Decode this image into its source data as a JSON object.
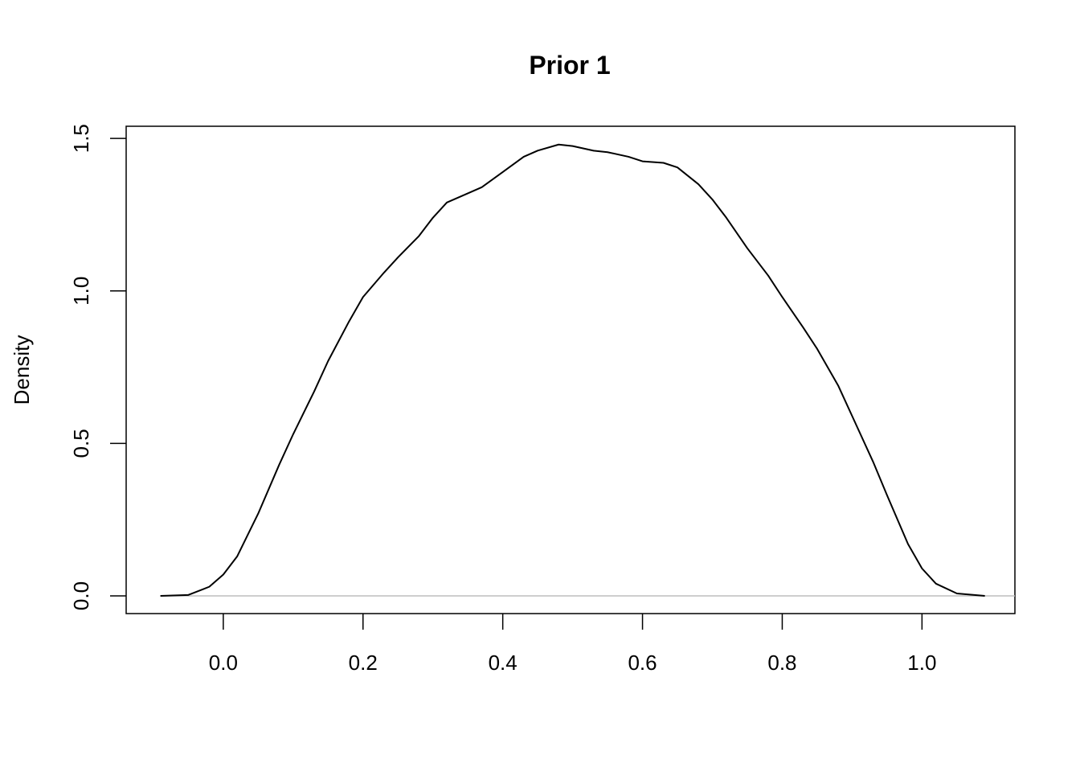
{
  "chart_data": {
    "type": "line",
    "title": "Prior 1",
    "y_label": "Density",
    "x": [
      -0.09,
      -0.05,
      -0.02,
      0.0,
      0.02,
      0.05,
      0.08,
      0.1,
      0.13,
      0.15,
      0.18,
      0.2,
      0.23,
      0.25,
      0.28,
      0.3,
      0.32,
      0.35,
      0.37,
      0.4,
      0.43,
      0.45,
      0.48,
      0.5,
      0.53,
      0.55,
      0.58,
      0.6,
      0.63,
      0.65,
      0.68,
      0.7,
      0.72,
      0.75,
      0.78,
      0.8,
      0.83,
      0.85,
      0.88,
      0.9,
      0.93,
      0.95,
      0.98,
      1.0,
      1.02,
      1.05,
      1.09
    ],
    "series": [
      {
        "color": "#000000",
        "values": [
          0,
          0.003,
          0.03,
          0.07,
          0.13,
          0.27,
          0.43,
          0.53,
          0.67,
          0.77,
          0.9,
          0.98,
          1.06,
          1.11,
          1.18,
          1.24,
          1.29,
          1.32,
          1.34,
          1.39,
          1.44,
          1.46,
          1.48,
          1.475,
          1.46,
          1.455,
          1.44,
          1.425,
          1.42,
          1.405,
          1.35,
          1.3,
          1.24,
          1.14,
          1.05,
          0.98,
          0.88,
          0.81,
          0.69,
          0.59,
          0.44,
          0.33,
          0.17,
          0.09,
          0.04,
          0.008,
          0
        ]
      }
    ],
    "xlim": [
      -0.139,
      1.133
    ],
    "ylim": [
      -0.058,
      1.54
    ],
    "xticks": [
      {
        "value": 0,
        "label": "0.0"
      },
      0.2,
      0.4,
      0.6,
      0.8,
      {
        "value": 1,
        "label": "1.0"
      }
    ],
    "yticks": [
      {
        "value": 0,
        "label": "0.0"
      },
      0.5,
      {
        "value": 1,
        "label": "1.0"
      },
      1.5
    ],
    "zero_line": true,
    "zero_line_color": "#bebebe"
  }
}
